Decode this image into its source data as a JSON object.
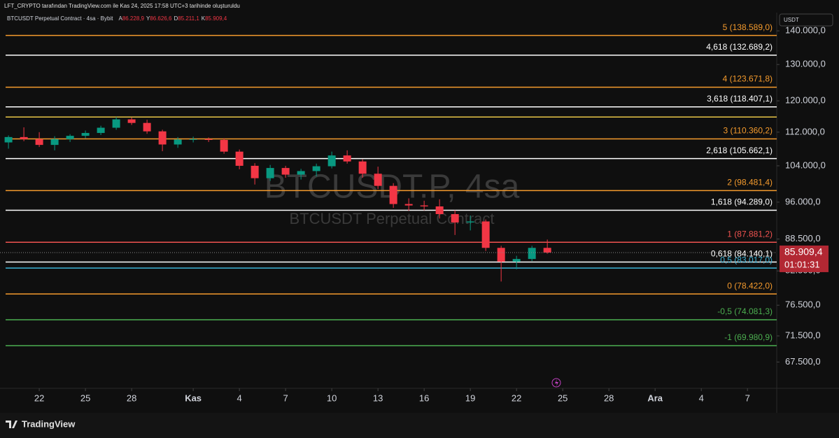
{
  "header": {
    "created_by": "LFT_CRYPTO tarafından TradingView.com ile Kas 24, 2025 17:58 UTC+3 tarihinde oluşturuldu",
    "symbol": "BTCUSDT Perpetual Contract · 4sa · Bybit",
    "ohlc": [
      {
        "key": "A",
        "value": "86.228,9"
      },
      {
        "key": "Y",
        "value": "86.626,6"
      },
      {
        "key": "D",
        "value": "85.211,1"
      },
      {
        "key": "K",
        "value": "85.909,4"
      }
    ]
  },
  "currency_button": "USDT",
  "brand": "TradingView",
  "chart_data": {
    "type": "candlestick",
    "watermark": "BTCUSDT.P, 4sa",
    "watermark_subtitle": "BTCUSDT Perpetual Contract",
    "up_color": "#089981",
    "down_color": "#f23645",
    "x": [
      -2,
      -1,
      0,
      1,
      2,
      3,
      4,
      5,
      6,
      7,
      8,
      9,
      10,
      11,
      12,
      13,
      14,
      15,
      16,
      17,
      18,
      19,
      20,
      21,
      22,
      23,
      24,
      25,
      26,
      27,
      28,
      29,
      30,
      31,
      32,
      33
    ],
    "open": [
      109500,
      110800,
      110300,
      108900,
      110300,
      111100,
      111800,
      113100,
      115200,
      114300,
      112200,
      109000,
      110200,
      110300,
      110100,
      107300,
      104000,
      101200,
      103500,
      102000,
      102800,
      103900,
      106400,
      105000,
      102200,
      99500,
      95600,
      95300,
      95100,
      93500,
      91800,
      92000,
      86800,
      84200,
      84700,
      86800
    ],
    "high": [
      111200,
      113200,
      112000,
      111000,
      111500,
      112400,
      113600,
      115800,
      115700,
      115100,
      112600,
      110800,
      110900,
      110700,
      110500,
      107800,
      104600,
      104200,
      104000,
      103300,
      104500,
      107300,
      107600,
      105500,
      103800,
      100100,
      96800,
      96300,
      96600,
      94300,
      93200,
      92400,
      87200,
      85300,
      87200,
      88400
    ],
    "low": [
      108000,
      109800,
      108400,
      107600,
      109600,
      110500,
      111300,
      112600,
      113800,
      111600,
      107400,
      108200,
      109500,
      109600,
      106800,
      103200,
      99800,
      100600,
      101300,
      100900,
      101600,
      103400,
      104500,
      101300,
      98800,
      94800,
      94200,
      94300,
      92600,
      89300,
      90200,
      86200,
      80600,
      82800,
      84300,
      85700
    ],
    "close": [
      110800,
      110300,
      108900,
      110300,
      111100,
      111800,
      113100,
      115200,
      114300,
      112200,
      109000,
      110200,
      110300,
      110100,
      107300,
      104000,
      101200,
      103500,
      102000,
      102800,
      103900,
      106400,
      105000,
      102200,
      99500,
      95600,
      95300,
      95100,
      93500,
      91800,
      92000,
      86800,
      84200,
      84700,
      86800,
      85909.4
    ],
    "xlim": [
      -2.55,
      47.9
    ],
    "xticks": [
      {
        "value": 0,
        "label": "22"
      },
      {
        "value": 3,
        "label": "25"
      },
      {
        "value": 6,
        "label": "28"
      },
      {
        "value": 10,
        "label": "Kas"
      },
      {
        "value": 13,
        "label": "4"
      },
      {
        "value": 16,
        "label": "7"
      },
      {
        "value": 19,
        "label": "10"
      },
      {
        "value": 22,
        "label": "13"
      },
      {
        "value": 25,
        "label": "16"
      },
      {
        "value": 28,
        "label": "19"
      },
      {
        "value": 31,
        "label": "22"
      },
      {
        "value": 34,
        "label": "25"
      },
      {
        "value": 37,
        "label": "28"
      },
      {
        "value": 40,
        "label": "Ara"
      },
      {
        "value": 43,
        "label": "4"
      },
      {
        "value": 46,
        "label": "7"
      }
    ],
    "ylim": [
      63700,
      145300
    ],
    "log_scale": true,
    "yticks": [
      {
        "value": 140000,
        "label": "140.000,0"
      },
      {
        "value": 130000,
        "label": "130.000,0"
      },
      {
        "value": 120000,
        "label": "120.000,0"
      },
      {
        "value": 112000,
        "label": "112.000,0"
      },
      {
        "value": 104000,
        "label": "104.000,0"
      },
      {
        "value": 96000,
        "label": "96.000,0"
      },
      {
        "value": 88500,
        "label": "88.500,0"
      },
      {
        "value": 82500,
        "label": "82.500,0"
      },
      {
        "value": 76500,
        "label": "76.500,0"
      },
      {
        "value": 71500,
        "label": "71.500,0"
      },
      {
        "value": 67500,
        "label": "67.500,0"
      }
    ],
    "fib_levels": [
      {
        "label": "5 (138.589,0)",
        "value": 138589,
        "color": "#f59b2d"
      },
      {
        "label": "4,618 (132.689,2)",
        "value": 132689.2,
        "color": "#ffffff"
      },
      {
        "label": "4 (123.671,8)",
        "value": 123671.8,
        "color": "#f59b2d"
      },
      {
        "label": "3,618 (118.407,1)",
        "value": 118407.1,
        "color": "#ffffff"
      },
      {
        "label": "3 (110.360,2)",
        "value": 110360.2,
        "color": "#f59b2d"
      },
      {
        "label": "2,618 (105.662,1)",
        "value": 105662.1,
        "color": "#ffffff"
      },
      {
        "label": "2 (98.481,4)",
        "value": 98481.4,
        "color": "#f59b2d"
      },
      {
        "label": "1,618 (94.289,0)",
        "value": 94289,
        "color": "#ffffff"
      },
      {
        "label": "1 (87.881,2)",
        "value": 87881.2,
        "color": "#f05350"
      },
      {
        "label": "0,618 (84.140,1)",
        "value": 84140.1,
        "color": "#ffffff"
      },
      {
        "label": "0,5 (83.017,0)",
        "value": 83017,
        "color": "#3bb3d6"
      },
      {
        "label": "0 (78.422,0)",
        "value": 78422,
        "color": "#f59b2d"
      },
      {
        "label": "-0,5 (74.081,3)",
        "value": 74081.3,
        "color": "#4caf50"
      },
      {
        "label": "-1 (69.980,9)",
        "value": 69980.9,
        "color": "#4caf50"
      }
    ],
    "extra_lines": [
      {
        "value": 115800,
        "color": "#e8c547"
      }
    ],
    "last_price": {
      "value": 85909.4,
      "label": "85.909,4",
      "countdown": "01:01:31",
      "color": "#b22833"
    }
  }
}
